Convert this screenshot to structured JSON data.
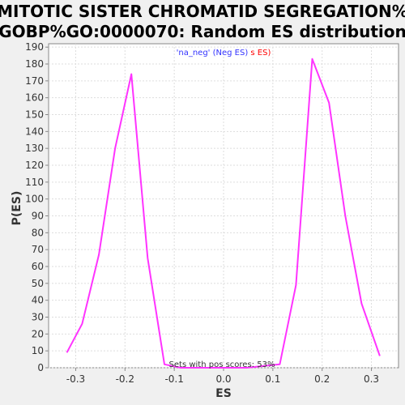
{
  "chart_data": {
    "type": "line",
    "title_line1": "MITOTIC SISTER CHROMATID SEGREGATION%",
    "title_line2": "GOBP%GO:0000070: Random ES distribution",
    "xlabel": "ES",
    "ylabel": "P(ES)",
    "xlim": [
      -0.355,
      0.355
    ],
    "ylim": [
      0,
      192
    ],
    "xticks": [
      -0.3,
      -0.2,
      -0.1,
      0.0,
      0.1,
      0.2,
      0.3
    ],
    "xtick_labels": [
      "-0.3",
      "-0.2",
      "-0.1",
      "0.0",
      "0.1",
      "0.2",
      "0.3"
    ],
    "yticks": [
      0,
      10,
      20,
      30,
      40,
      50,
      60,
      70,
      80,
      90,
      100,
      110,
      120,
      130,
      140,
      150,
      160,
      170,
      180,
      190
    ],
    "grid": true,
    "legend": {
      "placement": "top-center",
      "parts": [
        {
          "text": "'na_neg' (Neg ES) ",
          "color": "#3333ff"
        },
        {
          "text": "s ES)",
          "color": "#ff0000"
        }
      ]
    },
    "annotation": "Sets with pos scores: 53%",
    "series": [
      {
        "color": "#ff33ff",
        "x": [
          -0.318,
          -0.287,
          -0.253,
          -0.22,
          -0.187,
          -0.154,
          -0.12,
          -0.087,
          -0.054,
          -0.02,
          0.013,
          0.047,
          0.08,
          0.114,
          0.147,
          0.18,
          0.214,
          0.247,
          0.28,
          0.317
        ],
        "y": [
          9,
          26,
          67,
          130,
          174,
          65,
          2,
          0,
          0,
          0,
          0,
          0,
          1,
          2,
          49,
          183,
          157,
          90,
          38,
          7
        ]
      }
    ]
  }
}
